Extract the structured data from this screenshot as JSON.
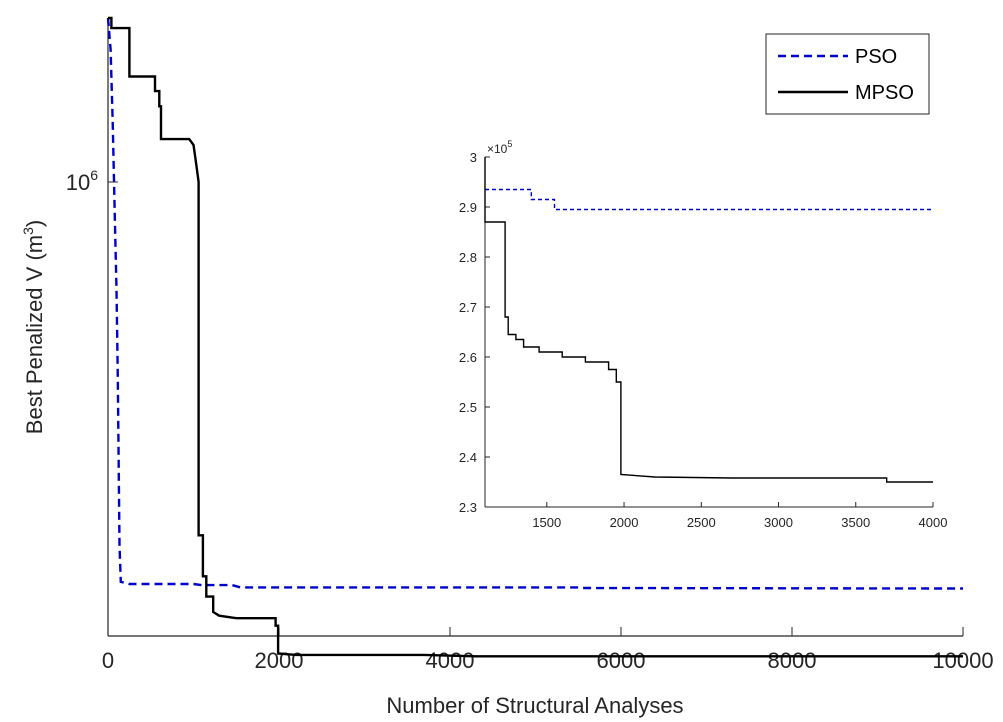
{
  "chart_data": [
    {
      "type": "line",
      "title": "",
      "xlabel": "Number of Structural Analyses",
      "ylabel": "Best Penalized V (m",
      "ylabel_sup": "3",
      "ylabel_end": ")",
      "y_scale": "log",
      "xlim": [
        0,
        10000
      ],
      "ylim": [
        250000,
        1650000
      ],
      "x_ticks": [
        0,
        2000,
        4000,
        6000,
        8000,
        10000
      ],
      "x_tick_labels": [
        "0",
        "2000",
        "4000",
        "6000",
        "8000",
        "10000"
      ],
      "y_tick_base": "10",
      "y_tick_exp": "6",
      "y_tick_value": 1000000,
      "grid": false,
      "legend_position": "top-right",
      "series": [
        {
          "name": "PSO",
          "color": "#0000cc",
          "style": "dashed",
          "x": [
            0,
            30,
            55,
            80,
            100,
            115,
            125,
            135,
            150,
            250,
            1000,
            1100,
            1450,
            1550,
            5500,
            5550,
            9650,
            10000
          ],
          "y": [
            1650000,
            1500000,
            1200000,
            900000,
            720000,
            550000,
            420000,
            330000,
            295000,
            293000,
            293000,
            292000,
            292000,
            290000,
            290000,
            289500,
            289000,
            289000
          ]
        },
        {
          "name": "MPSO",
          "color": "#000000",
          "style": "solid",
          "x": [
            0,
            40,
            40,
            250,
            250,
            550,
            550,
            600,
            600,
            620,
            620,
            950,
            1000,
            1020,
            1040,
            1060,
            1060,
            1110,
            1110,
            1150,
            1150,
            1230,
            1230,
            1300,
            1500,
            1960,
            1960,
            1990,
            1990,
            2200,
            2700,
            3700,
            4300,
            10000
          ],
          "y": [
            1650000,
            1650000,
            1600000,
            1600000,
            1380000,
            1380000,
            1320000,
            1320000,
            1260000,
            1260000,
            1140000,
            1140000,
            1120000,
            1080000,
            1040000,
            1000000,
            340000,
            340000,
            300000,
            300000,
            282000,
            282000,
            269000,
            266000,
            264000,
            264000,
            258000,
            258000,
            237000,
            236000,
            236000,
            236000,
            235000,
            235000
          ]
        }
      ]
    },
    {
      "type": "line",
      "title": "",
      "xlabel": "",
      "ylabel": "",
      "xlim": [
        1100,
        4000
      ],
      "ylim": [
        230000,
        300000
      ],
      "y_multiplier_base": "×10",
      "y_multiplier_exp": "5",
      "x_ticks": [
        1500,
        2000,
        2500,
        3000,
        3500,
        4000
      ],
      "x_tick_labels": [
        "1500",
        "2000",
        "2500",
        "3000",
        "3500",
        "4000"
      ],
      "y_ticks": [
        230000,
        240000,
        250000,
        260000,
        270000,
        280000,
        290000,
        300000
      ],
      "y_tick_labels": [
        "2.3",
        "2.4",
        "2.5",
        "2.6",
        "2.7",
        "2.8",
        "2.9",
        "3"
      ],
      "grid": false,
      "series": [
        {
          "name": "PSO",
          "color": "#0000cc",
          "style": "dashed",
          "x": [
            1100,
            1400,
            1400,
            1550,
            1550,
            4000
          ],
          "y": [
            293500,
            293500,
            291500,
            291500,
            289500,
            289500
          ]
        },
        {
          "name": "MPSO",
          "color": "#000000",
          "style": "solid",
          "x": [
            1100,
            1100,
            1150,
            1150,
            1230,
            1230,
            1250,
            1250,
            1300,
            1300,
            1350,
            1350,
            1450,
            1450,
            1600,
            1600,
            1750,
            1750,
            1900,
            1900,
            1950,
            1950,
            1980,
            1980,
            2200,
            2700,
            3700,
            3700,
            4000
          ],
          "y": [
            300000,
            287000,
            287000,
            287000,
            287000,
            268000,
            268000,
            264500,
            264500,
            263500,
            263500,
            262000,
            262000,
            261000,
            261000,
            260000,
            260000,
            259000,
            259000,
            257500,
            257500,
            255000,
            255000,
            236500,
            236000,
            235800,
            235800,
            235000,
            235000
          ]
        }
      ]
    }
  ],
  "legend": {
    "items": [
      {
        "label": "PSO",
        "color": "#0000cc",
        "style": "dashed"
      },
      {
        "label": "MPSO",
        "color": "#000000",
        "style": "solid"
      }
    ]
  }
}
